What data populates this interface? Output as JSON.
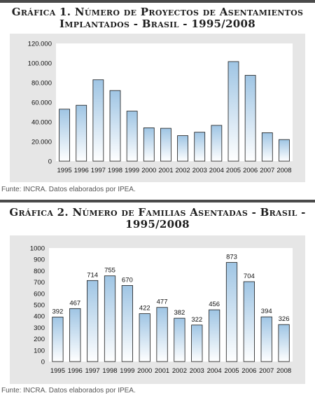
{
  "charts": [
    {
      "title_line1": "Gráfica 1. Número de Proyectos de Asentamientos",
      "title_line2": "Implantados - Brasil - 1995/2008",
      "source": "Funte: INCRA. Datos elaborados por IPEA."
    },
    {
      "title_line1": "Gráfica 2. Número de Familias Asentadas - Brasil -",
      "title_line2": "1995/2008",
      "source": "Funte: INCRA. Datos elaborados por IPEA."
    }
  ],
  "colors": {
    "bar_top": "#9fc5e4",
    "bar_bottom": "#ffffff",
    "bar_stroke": "#1a1a1a",
    "panel": "#e6e6e6",
    "plot_bg": "#ffffff",
    "rule": "#4a4a4a"
  },
  "chart_data": [
    {
      "type": "bar",
      "title": "Gráfica 1. Número de Proyectos de Asentamientos Implantados - Brasil - 1995/2008",
      "categories": [
        "1995",
        "1996",
        "1997",
        "1998",
        "1999",
        "2000",
        "2001",
        "2002",
        "2003",
        "2004",
        "2005",
        "2006",
        "2007",
        "2008"
      ],
      "values": [
        53000,
        57000,
        83000,
        72000,
        51000,
        34000,
        33500,
        26000,
        29500,
        36500,
        101500,
        87500,
        29000,
        22000
      ],
      "ylim": [
        0,
        120000
      ],
      "yticks": [
        0,
        20000,
        40000,
        60000,
        80000,
        100000,
        120000
      ],
      "ytick_labels": [
        "0",
        "20.000",
        "40.000",
        "60.000",
        "80.000",
        "100.000",
        "120.000"
      ],
      "show_value_labels": false,
      "grid": false,
      "xlabel": "",
      "ylabel": ""
    },
    {
      "type": "bar",
      "title": "Gráfica 2. Número de Familias Asentadas - Brasil - 1995/2008",
      "categories": [
        "1995",
        "1996",
        "1997",
        "1998",
        "1999",
        "2000",
        "2001",
        "2002",
        "2003",
        "2004",
        "2005",
        "2006",
        "2007",
        "2008"
      ],
      "values": [
        392,
        467,
        714,
        755,
        670,
        422,
        477,
        382,
        322,
        456,
        873,
        704,
        394,
        326
      ],
      "ylim": [
        0,
        1000
      ],
      "yticks": [
        0,
        100,
        200,
        300,
        400,
        500,
        600,
        700,
        800,
        900,
        1000
      ],
      "ytick_labels": [
        "0",
        "100",
        "200",
        "300",
        "400",
        "500",
        "600",
        "700",
        "800",
        "900",
        "1000"
      ],
      "show_value_labels": true,
      "grid": false,
      "xlabel": "",
      "ylabel": ""
    }
  ]
}
